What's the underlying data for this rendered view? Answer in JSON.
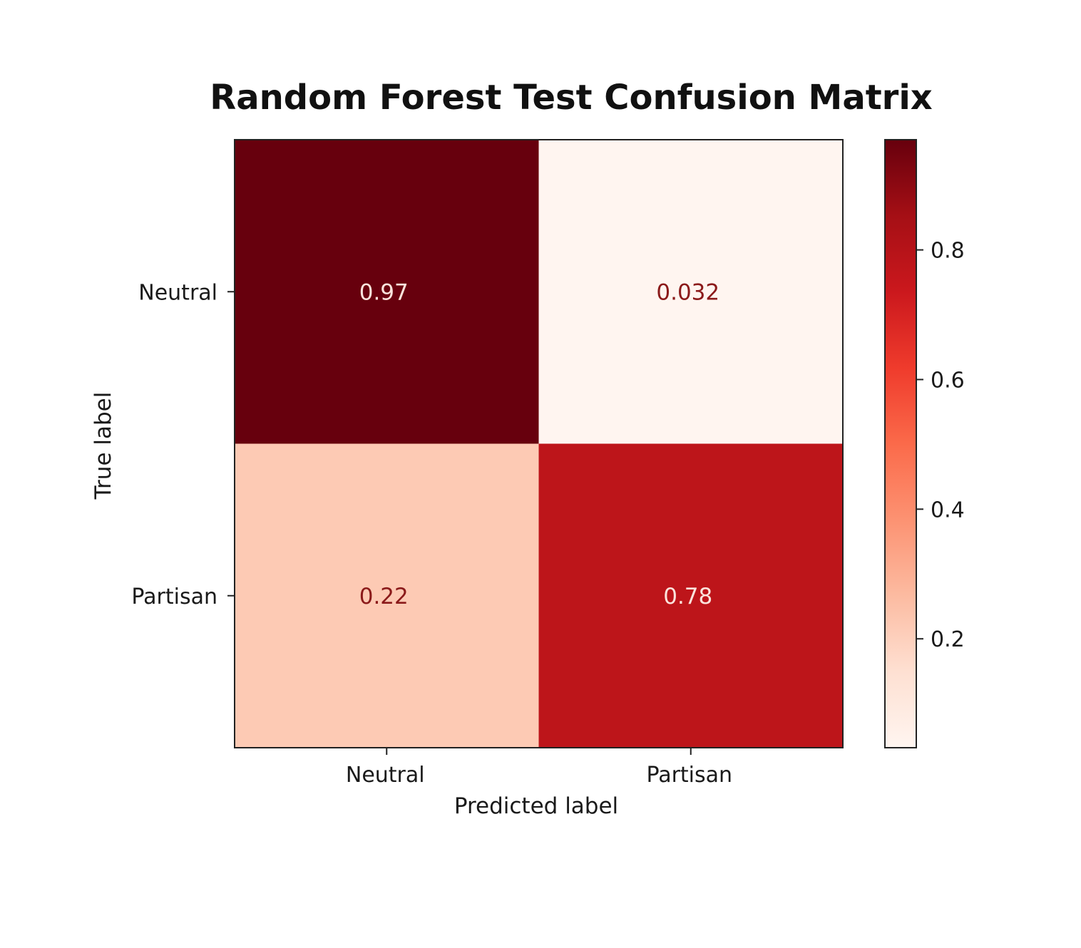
{
  "chart_data": {
    "type": "heatmap",
    "title": "Random Forest Test Confusion Matrix",
    "xlabel": "Predicted label",
    "ylabel": "True label",
    "x_categories": [
      "Neutral",
      "Partisan"
    ],
    "y_categories": [
      "Neutral",
      "Partisan"
    ],
    "values": [
      [
        0.97,
        0.032
      ],
      [
        0.22,
        0.78
      ]
    ],
    "value_labels": [
      [
        "0.97",
        "0.032"
      ],
      [
        "0.22",
        "0.78"
      ]
    ],
    "colormap": "Reds",
    "colorbar": {
      "range": [
        0.032,
        0.97
      ],
      "ticks": [
        0.2,
        0.4,
        0.6,
        0.8
      ],
      "tick_labels": [
        "0.2",
        "0.4",
        "0.6",
        "0.8"
      ]
    },
    "grid": false
  }
}
